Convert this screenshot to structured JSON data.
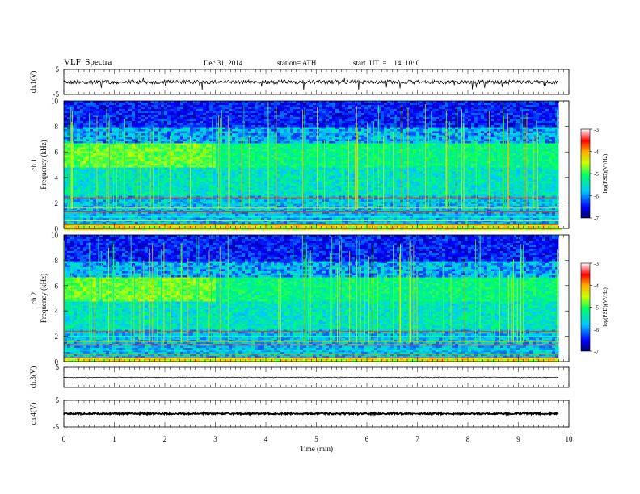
{
  "header": {
    "title": "VLF  Spectra",
    "date": "Dec.31, 2014",
    "station": "station= ATH",
    "start": "start  UT  =    14: 10: 0"
  },
  "chart_data": [
    {
      "type": "line",
      "panel": "ch1-waveform",
      "ylabel": "ch.1(V)",
      "ylim": [
        -5,
        5
      ],
      "y_ticks": [
        "5",
        "-5"
      ],
      "xlim": [
        0,
        10
      ],
      "series": [
        {
          "values_note_free": true,
          "baseline": 0,
          "amplitude": 0.8
        }
      ]
    },
    {
      "type": "heatmap",
      "panel": "ch1-spectrogram",
      "ylabel_lines": [
        "ch.1",
        "Frequency  (kHz)"
      ],
      "ylim": [
        0,
        10
      ],
      "y_ticks": [
        "0",
        "2",
        "4",
        "6",
        "8",
        "10"
      ],
      "xlim": [
        0,
        10
      ],
      "colorbar": {
        "label": "log(PSD)(V²/Hz)",
        "range": [
          -7,
          -3
        ],
        "ticks": [
          "-3",
          "-4",
          "-5",
          "-6",
          "-7"
        ]
      }
    },
    {
      "type": "heatmap",
      "panel": "ch2-spectrogram",
      "ylabel_lines": [
        "ch.2",
        "Frequency  (kHz)"
      ],
      "ylim": [
        0,
        10
      ],
      "y_ticks": [
        "0",
        "2",
        "4",
        "6",
        "8",
        "10"
      ],
      "xlim": [
        0,
        10
      ],
      "colorbar": {
        "label": "log(PSD)(V²/Hz)",
        "range": [
          -7,
          -3
        ],
        "ticks": [
          "-3",
          "-4",
          "-5",
          "-6",
          "-7"
        ]
      }
    },
    {
      "type": "line",
      "panel": "ch3-waveform",
      "ylabel": "ch.3(V)",
      "ylim": [
        -5,
        5
      ],
      "y_ticks": [
        "5"
      ],
      "xlim": [
        0,
        10
      ],
      "series": [
        {
          "baseline": 0,
          "amplitude": 0.2
        }
      ]
    },
    {
      "type": "line",
      "panel": "ch4-waveform",
      "ylabel": "ch.4(V)",
      "ylim": [
        -5,
        5
      ],
      "y_ticks": [
        "5",
        "-5"
      ],
      "xlim": [
        0,
        10
      ],
      "series": [
        {
          "baseline": 0,
          "amplitude": 0.3
        }
      ]
    }
  ],
  "xaxis": {
    "label": "Time  (min)",
    "ticks": [
      "0",
      "1",
      "2",
      "3",
      "4",
      "5",
      "6",
      "7",
      "8",
      "9",
      "10"
    ],
    "data_end": 9.8
  }
}
